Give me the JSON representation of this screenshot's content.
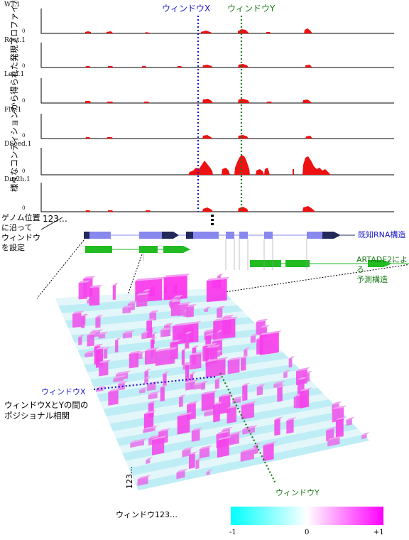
{
  "tracks": [
    {
      "label": "WT.1",
      "zero": "0"
    },
    {
      "label": "Root.1",
      "zero": "0"
    },
    {
      "label": "Leaf.1",
      "zero": "0"
    },
    {
      "label": "Flw.1",
      "zero": "0"
    },
    {
      "label": "DSeed.1",
      "zero": "0"
    },
    {
      "label": "Dry2h.1",
      "zero": "0"
    }
  ],
  "y_axis_label": "様々なコンディションから得られた発現プロファイル",
  "window_x_label": "ウィンドウX",
  "window_y_label": "ウィンドウY",
  "window_x_color": "#1a1acc",
  "window_y_color": "#1a7a1a",
  "genome_note": [
    "ゲノム位置",
    "に沿って",
    "ウィンドウ",
    "を設定"
  ],
  "index_label": "123…",
  "known_rna_label": "既知RNA構造",
  "artade_label": [
    "ARTADE2による",
    "予測構造"
  ],
  "window_x_3d_label": "ウィンドウX",
  "window_y_3d_label": "ウィンドウY",
  "correlation_note": [
    "ウィンドウXとYの間の",
    "ポジショナル相関"
  ],
  "axis_123_vertical": "123…",
  "axis_window123": "ウィンドウ123…",
  "colorbar": {
    "min": "-1",
    "mid": "0",
    "max": "+1",
    "low_color": "#00ffff",
    "mid_color": "#ffffff",
    "high_color": "#ff00ff"
  },
  "colors": {
    "signal": "#ee1111",
    "known_rna": "#8888ee",
    "known_rna_dark": "#22285a",
    "predicted": "#22bb22"
  }
}
